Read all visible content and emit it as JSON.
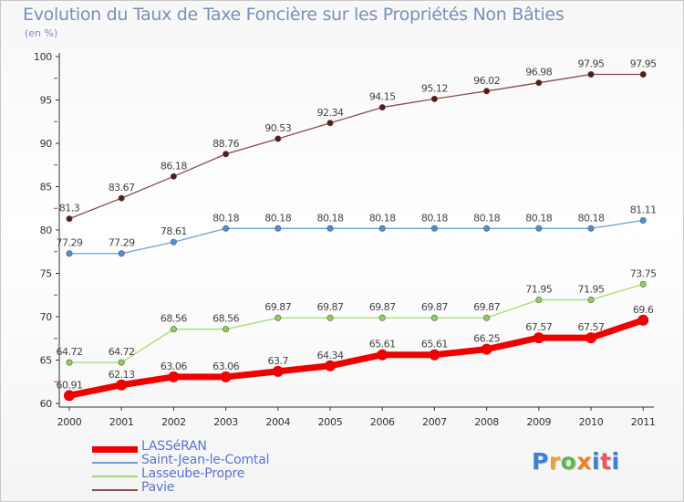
{
  "title": "Evolution du Taux de Taxe Foncière sur les Propriétés Non Bâties",
  "unit": "(en %)",
  "logo_text": "Proxiti",
  "colors": {
    "title": "#7a8fb8",
    "axis": "#333333",
    "grid_ticks": "#cc3333",
    "legend_text": "#5a74d6",
    "logo": [
      "#3d7fd6",
      "#e8a23a",
      "#5fb84a",
      "#e8842a",
      "#3d7fd6",
      "#e85a5a",
      "#3d7fd6"
    ]
  },
  "chart_data": {
    "type": "line",
    "title": "Evolution du Taux de Taxe Foncière sur les Propriétés Non Bâties",
    "ylabel": "(en %)",
    "xlabel": "",
    "x": [
      "2000",
      "2001",
      "2002",
      "2003",
      "2004",
      "2005",
      "2006",
      "2007",
      "2008",
      "2009",
      "2010",
      "2011"
    ],
    "ylim": [
      60,
      100
    ],
    "yticks": [
      60,
      65,
      70,
      75,
      80,
      85,
      90,
      95,
      100
    ],
    "grid": false,
    "legend": "bottom-left",
    "series": [
      {
        "name": "LASSéRAN",
        "color": "#ee0000",
        "marker_color": "#ee0000",
        "style": "thick",
        "values": [
          60.91,
          62.13,
          63.06,
          63.06,
          63.7,
          64.34,
          65.61,
          65.61,
          66.25,
          67.57,
          67.57,
          69.6
        ],
        "labels": [
          "60.91",
          "62.13",
          "63.06",
          "63.06",
          "63.7",
          "64.34",
          "65.61",
          "65.61",
          "66.25",
          "67.57",
          "67.57",
          "69.6"
        ]
      },
      {
        "name": "Saint-Jean-le-Comtal",
        "color": "#6f9ed6",
        "marker_color": "#4a90d9",
        "style": "thin",
        "values": [
          77.29,
          77.29,
          78.61,
          80.18,
          80.18,
          80.18,
          80.18,
          80.18,
          80.18,
          80.18,
          80.18,
          81.11
        ],
        "labels": [
          "77.29",
          "77.29",
          "78.61",
          "80.18",
          "80.18",
          "80.18",
          "80.18",
          "80.18",
          "80.18",
          "80.18",
          "80.18",
          "81.11"
        ]
      },
      {
        "name": "Lasseube-Propre",
        "color": "#a4dc72",
        "marker_color": "#8fd05a",
        "style": "thin",
        "values": [
          64.72,
          64.72,
          68.56,
          68.56,
          69.87,
          69.87,
          69.87,
          69.87,
          69.87,
          71.95,
          71.95,
          73.75
        ],
        "labels": [
          "64.72",
          "64.72",
          "68.56",
          "68.56",
          "69.87",
          "69.87",
          "69.87",
          "69.87",
          "69.87",
          "71.95",
          "71.95",
          "73.75"
        ]
      },
      {
        "name": "Pavie",
        "color": "#8b4a4a",
        "marker_color": "#5a1818",
        "style": "thin",
        "values": [
          81.3,
          83.67,
          86.18,
          88.76,
          90.53,
          92.34,
          94.15,
          95.12,
          96.02,
          96.98,
          97.95,
          97.95
        ],
        "labels": [
          "81.3",
          "83.67",
          "86.18",
          "88.76",
          "90.53",
          "92.34",
          "94.15",
          "95.12",
          "96.02",
          "96.98",
          "97.95",
          "97.95"
        ]
      }
    ]
  }
}
